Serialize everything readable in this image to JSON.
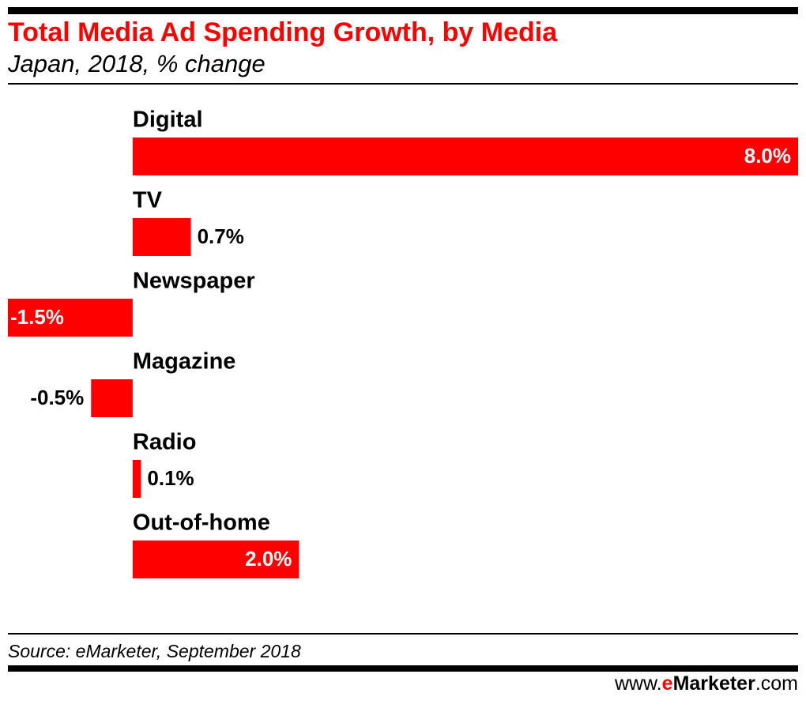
{
  "chart_data": {
    "type": "bar",
    "orientation": "horizontal",
    "title": "Total Media Ad Spending Growth, by Media",
    "subtitle": "Japan, 2018, % change",
    "categories": [
      "Digital",
      "TV",
      "Newspaper",
      "Magazine",
      "Radio",
      "Out-of-home"
    ],
    "values": [
      8.0,
      0.7,
      -1.5,
      -0.5,
      0.1,
      2.0
    ],
    "value_labels": [
      "8.0%",
      "0.7%",
      "-1.5%",
      "-0.5%",
      "0.1%",
      "2.0%"
    ],
    "color": "#ff0000",
    "source": "Source: eMarketer, September 2018",
    "website": {
      "prefix": "www.",
      "brand_initial": "e",
      "brand_rest": "Marketer",
      "suffix": ".com"
    }
  }
}
